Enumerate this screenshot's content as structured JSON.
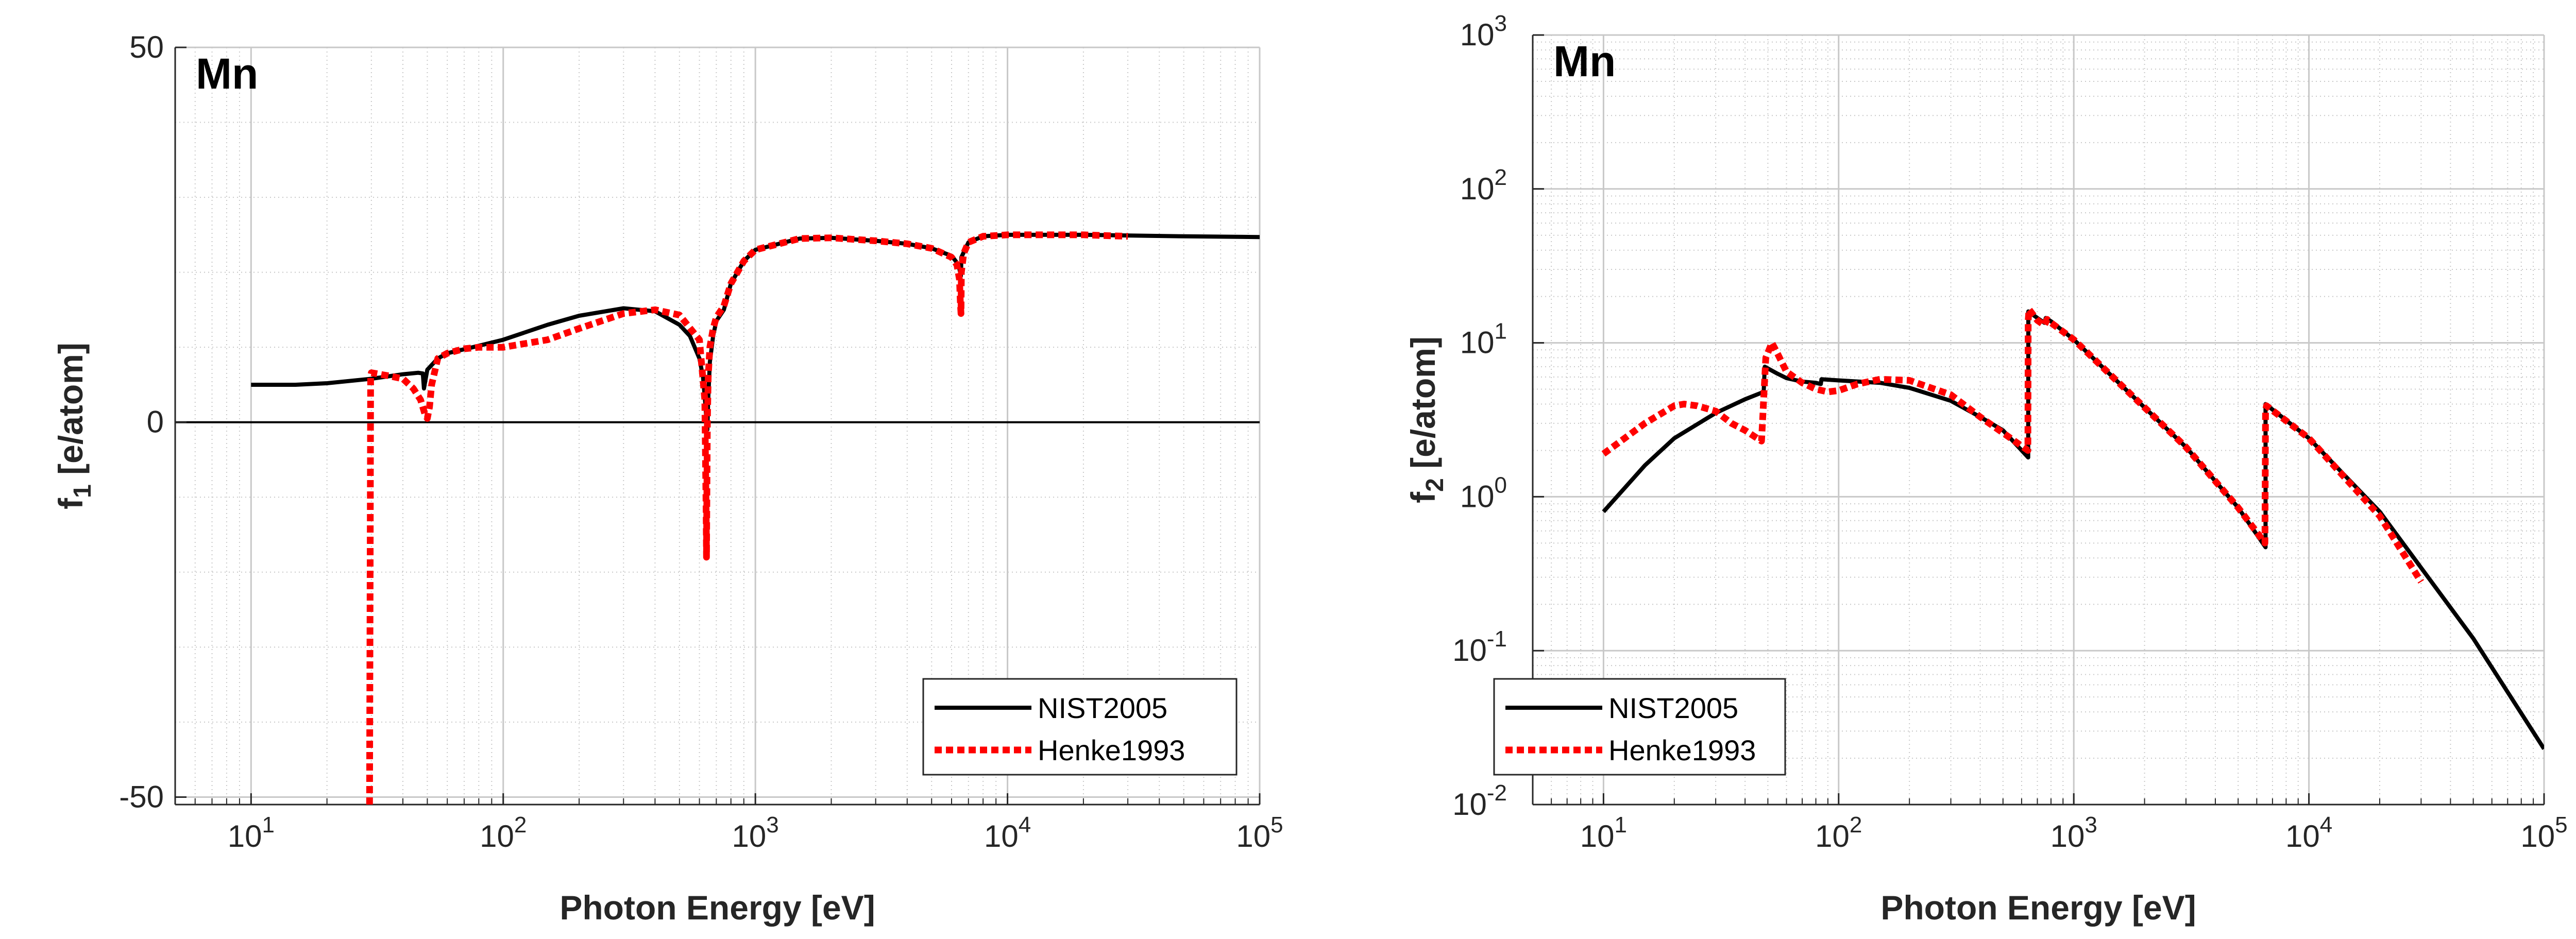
{
  "colors": {
    "nist": "#000000",
    "henke": "#ff0000",
    "grid": "#c8c8c8",
    "axis": "#262626"
  },
  "chart_data": [
    {
      "type": "line",
      "panel_label": "Mn",
      "xlabel": "Photon Energy [eV]",
      "ylabel": "f",
      "ylabel_sub": "1",
      "ylabel_suffix": " [e/atom]",
      "x_scale": "log",
      "y_scale": "linear",
      "xlim": [
        5,
        100000
      ],
      "ylim": [
        -51,
        50
      ],
      "x_ticks": [
        10,
        100,
        1000,
        10000,
        100000
      ],
      "x_tick_labels": [
        {
          "base": "10",
          "exp": "1"
        },
        {
          "base": "10",
          "exp": "2"
        },
        {
          "base": "10",
          "exp": "3"
        },
        {
          "base": "10",
          "exp": "4"
        },
        {
          "base": "10",
          "exp": "5"
        }
      ],
      "y_ticks": [
        -50,
        0,
        50
      ],
      "y_tick_labels": [
        "-50",
        "0",
        "50"
      ],
      "grid": true,
      "zero_line": true,
      "legend": "bottom-right",
      "series": [
        {
          "name": "NIST2005",
          "color": "#000000",
          "style": "solid",
          "x": [
            10,
            15,
            20,
            30,
            40,
            46,
            48,
            48.5,
            50,
            55,
            60,
            80,
            100,
            150,
            200,
            300,
            400,
            500,
            550,
            600,
            620,
            635,
            640,
            645,
            650,
            660,
            680,
            700,
            750,
            800,
            900,
            1000,
            1500,
            2000,
            3000,
            4000,
            5000,
            6000,
            6400,
            6530,
            6539,
            6560,
            7000,
            8000,
            10000,
            20000,
            50000,
            100000
          ],
          "y": [
            5,
            5,
            5.2,
            5.8,
            6.4,
            6.6,
            6.5,
            4.5,
            7,
            8.5,
            9.2,
            10.2,
            11,
            13,
            14.2,
            15.2,
            14.8,
            13,
            11.5,
            8.5,
            6,
            2,
            0,
            -1,
            3,
            8,
            11.5,
            13.5,
            15,
            18.5,
            21.5,
            23,
            24.5,
            24.6,
            24.2,
            23.8,
            23.2,
            22.2,
            21,
            19.5,
            20,
            22,
            24,
            24.8,
            25,
            25,
            24.8,
            24.7
          ]
        },
        {
          "name": "Henke1993",
          "color": "#ff0000",
          "style": "dotted",
          "x": [
            29.5,
            29.8,
            30,
            35,
            40,
            44,
            47,
            49,
            50,
            51,
            52,
            55,
            60,
            70,
            80,
            100,
            150,
            200,
            300,
            400,
            500,
            600,
            630,
            638,
            640,
            642,
            645,
            650,
            660,
            680,
            700,
            750,
            800,
            900,
            1000,
            1500,
            2000,
            3000,
            4000,
            5000,
            6000,
            6300,
            6450,
            6500,
            6540,
            6560,
            6700,
            7000,
            8000,
            10000,
            20000,
            30000
          ],
          "y": [
            -51,
            6.2,
            6.6,
            6.2,
            5.8,
            4.5,
            3,
            1,
            0.5,
            2,
            5,
            8.5,
            9.2,
            9.8,
            10,
            10,
            11,
            12.5,
            14.5,
            15,
            14.3,
            11,
            3,
            -12,
            -18,
            -10,
            0,
            6,
            10,
            12.5,
            14,
            15.5,
            18.5,
            21.5,
            23,
            24.5,
            24.6,
            24.2,
            23.8,
            23.2,
            22,
            21,
            19,
            16,
            14.5,
            20,
            22.5,
            24,
            24.8,
            25,
            25,
            24.8
          ]
        }
      ]
    },
    {
      "type": "line",
      "panel_label": "Mn",
      "xlabel": "Photon Energy [eV]",
      "ylabel": "f",
      "ylabel_sub": "2",
      "ylabel_suffix": " [e/atom]",
      "x_scale": "log",
      "y_scale": "log",
      "xlim": [
        5,
        100000
      ],
      "ylim": [
        0.01,
        1000
      ],
      "x_ticks": [
        10,
        100,
        1000,
        10000,
        100000
      ],
      "x_tick_labels": [
        {
          "base": "10",
          "exp": "1"
        },
        {
          "base": "10",
          "exp": "2"
        },
        {
          "base": "10",
          "exp": "3"
        },
        {
          "base": "10",
          "exp": "4"
        },
        {
          "base": "10",
          "exp": "5"
        }
      ],
      "y_ticks": [
        0.01,
        0.1,
        1,
        10,
        100,
        1000
      ],
      "y_tick_labels": [
        {
          "base": "10",
          "exp": "-2"
        },
        {
          "base": "10",
          "exp": "-1"
        },
        {
          "base": "10",
          "exp": "0"
        },
        {
          "base": "10",
          "exp": "1"
        },
        {
          "base": "10",
          "exp": "2"
        },
        {
          "base": "10",
          "exp": "3"
        }
      ],
      "grid": true,
      "zero_line": false,
      "legend": "bottom-left",
      "series": [
        {
          "name": "NIST2005",
          "color": "#000000",
          "style": "solid",
          "x": [
            10,
            15,
            20,
            30,
            40,
            48,
            48.5,
            55,
            60,
            70,
            80,
            84,
            84.5,
            100,
            150,
            200,
            300,
            400,
            500,
            640,
            641,
            700,
            750,
            760,
            800,
            1000,
            2000,
            3000,
            5000,
            6539,
            6540,
            10000,
            20000,
            50000,
            100000
          ],
          "y": [
            0.8,
            1.6,
            2.4,
            3.5,
            4.3,
            4.8,
            7,
            6.3,
            5.9,
            5.6,
            5.5,
            5.4,
            5.8,
            5.7,
            5.5,
            5.1,
            4.2,
            3.3,
            2.7,
            1.8,
            16,
            14.5,
            13.5,
            14.5,
            13.8,
            10.5,
            3.8,
            2.1,
            0.85,
            0.47,
            4,
            2.4,
            0.8,
            0.12,
            0.023
          ]
        },
        {
          "name": "Henke1993",
          "color": "#ff0000",
          "style": "dotted",
          "x": [
            10,
            15,
            20,
            22,
            25,
            30,
            35,
            40,
            45,
            47,
            49,
            52,
            55,
            60,
            70,
            80,
            90,
            100,
            120,
            150,
            200,
            300,
            400,
            500,
            638,
            640,
            645,
            700,
            750,
            770,
            800,
            1000,
            2000,
            3000,
            5000,
            6500,
            6540,
            6600,
            10000,
            20000,
            30000
          ],
          "y": [
            1.9,
            3,
            3.9,
            4.0,
            3.9,
            3.6,
            3.0,
            2.7,
            2.4,
            2.3,
            8,
            10,
            8.5,
            6.5,
            5.5,
            5.0,
            4.8,
            4.9,
            5.4,
            5.8,
            5.7,
            4.6,
            3.3,
            2.6,
            2.0,
            14,
            16.5,
            14,
            13,
            14.2,
            13.5,
            10.5,
            3.8,
            2.1,
            0.85,
            0.5,
            3.6,
            3.9,
            2.4,
            0.75,
            0.28
          ]
        }
      ]
    }
  ]
}
